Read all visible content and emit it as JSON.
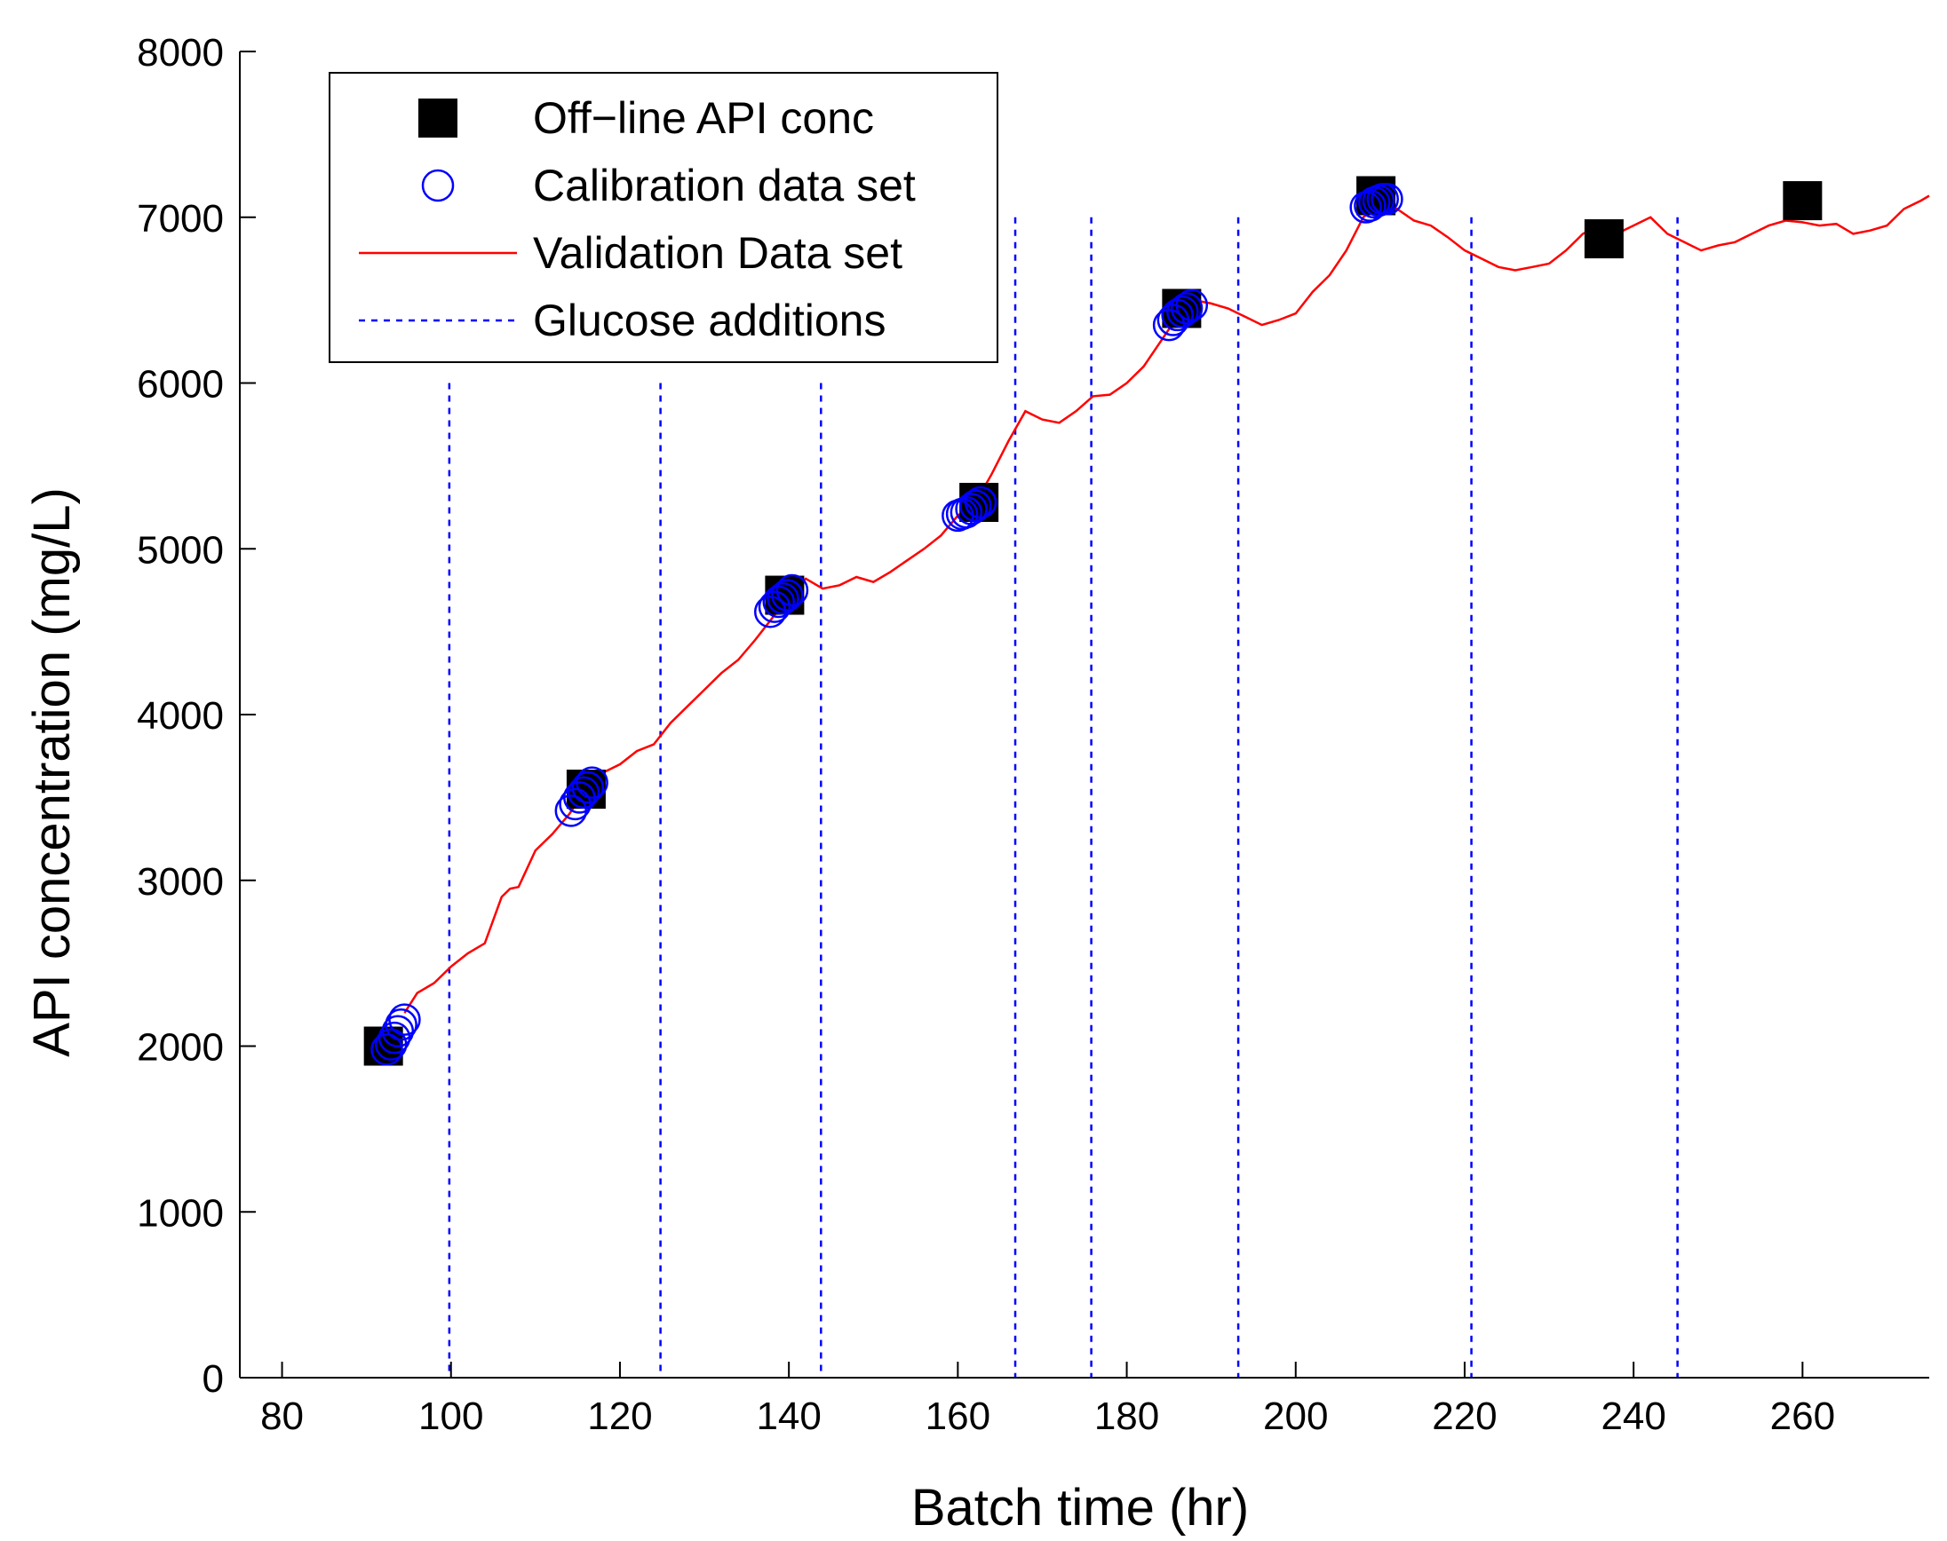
{
  "chart_data": {
    "type": "line",
    "xlabel": "Batch time (hr)",
    "ylabel": "API concentration (mg/L)",
    "xlim": [
      75,
      275
    ],
    "ylim": [
      0,
      8000
    ],
    "xticks": [
      80,
      100,
      120,
      140,
      160,
      180,
      200,
      220,
      240,
      260
    ],
    "yticks": [
      0,
      1000,
      2000,
      3000,
      4000,
      5000,
      6000,
      7000,
      8000
    ],
    "grid": false,
    "legend_position": "top-left",
    "legend": [
      {
        "label": "Off−line API conc",
        "marker": "square",
        "color": "#000000"
      },
      {
        "label": "Calibration data set",
        "marker": "circle",
        "color": "#0000ff"
      },
      {
        "label": "Validation Data set",
        "marker": "line",
        "color": "#ff0000"
      },
      {
        "label": "Glucose additions",
        "marker": "dashed",
        "color": "#0000ff"
      }
    ],
    "offline_api_conc": [
      {
        "x": 92.0,
        "y": 2000
      },
      {
        "x": 116.0,
        "y": 3550
      },
      {
        "x": 139.5,
        "y": 4720
      },
      {
        "x": 162.5,
        "y": 5280
      },
      {
        "x": 186.5,
        "y": 6450
      },
      {
        "x": 209.5,
        "y": 7130
      },
      {
        "x": 236.5,
        "y": 6870
      },
      {
        "x": 260.0,
        "y": 7100
      }
    ],
    "calibration_data_set": [
      {
        "x": 92.4,
        "y": 1980
      },
      {
        "x": 92.9,
        "y": 2010
      },
      {
        "x": 93.3,
        "y": 2050
      },
      {
        "x": 93.7,
        "y": 2090
      },
      {
        "x": 94.1,
        "y": 2130
      },
      {
        "x": 94.5,
        "y": 2160
      },
      {
        "x": 114.2,
        "y": 3420
      },
      {
        "x": 114.7,
        "y": 3460
      },
      {
        "x": 115.2,
        "y": 3500
      },
      {
        "x": 115.7,
        "y": 3530
      },
      {
        "x": 116.2,
        "y": 3560
      },
      {
        "x": 116.7,
        "y": 3590
      },
      {
        "x": 137.8,
        "y": 4620
      },
      {
        "x": 138.3,
        "y": 4650
      },
      {
        "x": 138.8,
        "y": 4680
      },
      {
        "x": 139.3,
        "y": 4700
      },
      {
        "x": 139.8,
        "y": 4720
      },
      {
        "x": 140.4,
        "y": 4750
      },
      {
        "x": 160.0,
        "y": 5200
      },
      {
        "x": 160.5,
        "y": 5210
      },
      {
        "x": 161.0,
        "y": 5220
      },
      {
        "x": 161.6,
        "y": 5240
      },
      {
        "x": 162.1,
        "y": 5260
      },
      {
        "x": 162.7,
        "y": 5280
      },
      {
        "x": 185.0,
        "y": 6350
      },
      {
        "x": 185.5,
        "y": 6380
      },
      {
        "x": 186.0,
        "y": 6410
      },
      {
        "x": 186.6,
        "y": 6430
      },
      {
        "x": 187.1,
        "y": 6450
      },
      {
        "x": 187.7,
        "y": 6470
      },
      {
        "x": 208.3,
        "y": 7060
      },
      {
        "x": 208.8,
        "y": 7070
      },
      {
        "x": 209.3,
        "y": 7090
      },
      {
        "x": 209.8,
        "y": 7100
      },
      {
        "x": 210.3,
        "y": 7110
      },
      {
        "x": 210.8,
        "y": 7110
      }
    ],
    "validation_data_set": {
      "x": [
        94.5,
        96,
        98,
        100,
        102,
        104,
        106,
        107,
        108,
        110,
        112,
        114,
        116,
        118,
        120,
        122,
        124,
        126,
        128,
        130,
        132,
        134,
        136,
        138,
        140,
        142,
        144,
        146,
        148,
        150,
        152,
        154,
        156,
        158,
        160,
        162,
        164,
        166,
        168,
        170,
        172,
        174,
        176,
        178,
        180,
        182,
        184,
        186,
        188,
        190,
        192,
        194,
        196,
        198,
        200,
        202,
        204,
        206,
        208,
        210,
        212,
        214,
        216,
        218,
        220,
        222,
        224,
        226,
        228,
        230,
        232,
        234,
        236,
        238,
        240,
        242,
        244,
        246,
        248,
        250,
        252,
        254,
        256,
        258,
        260,
        262,
        264,
        266,
        268,
        270,
        272,
        274,
        275
      ],
      "y": [
        2200,
        2320,
        2380,
        2480,
        2560,
        2620,
        2900,
        2950,
        2960,
        3180,
        3280,
        3400,
        3550,
        3650,
        3700,
        3780,
        3820,
        3950,
        4050,
        4150,
        4250,
        4330,
        4450,
        4580,
        4720,
        4820,
        4760,
        4780,
        4830,
        4800,
        4860,
        4930,
        5000,
        5080,
        5200,
        5270,
        5450,
        5650,
        5830,
        5780,
        5760,
        5830,
        5920,
        5930,
        6000,
        6100,
        6250,
        6400,
        6500,
        6480,
        6450,
        6400,
        6350,
        6380,
        6420,
        6550,
        6650,
        6800,
        7000,
        7080,
        7050,
        6980,
        6950,
        6880,
        6800,
        6750,
        6700,
        6680,
        6700,
        6720,
        6800,
        6900,
        6950,
        6900,
        6950,
        7000,
        6900,
        6850,
        6800,
        6830,
        6850,
        6900,
        6950,
        6980,
        6970,
        6950,
        6960,
        6900,
        6920,
        6950,
        7050,
        7100,
        7130
      ]
    },
    "glucose_additions": [
      99.8,
      124.8,
      143.8,
      166.8,
      175.8,
      193.2,
      220.8,
      245.2
    ]
  }
}
